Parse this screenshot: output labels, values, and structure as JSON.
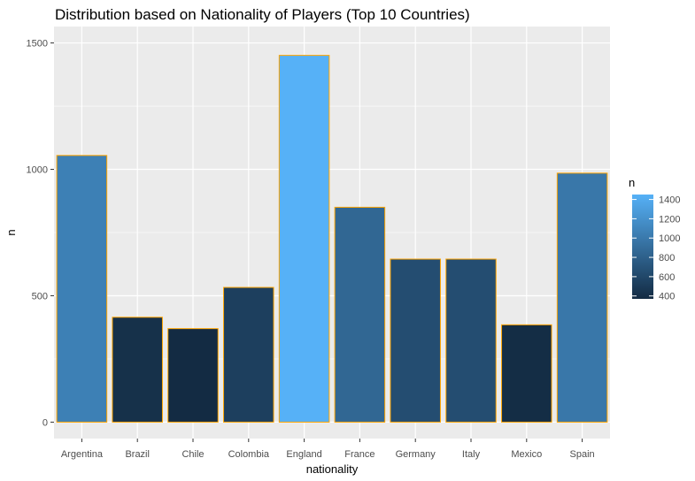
{
  "chart_data": {
    "type": "bar",
    "title": "Distribution based on Nationality of Players (Top 10 Countries)",
    "xlabel": "nationality",
    "ylabel": "n",
    "categories": [
      "Argentina",
      "Brazil",
      "Chile",
      "Colombia",
      "England",
      "France",
      "Germany",
      "Italy",
      "Mexico",
      "Spain"
    ],
    "values": [
      1055,
      415,
      370,
      533,
      1451,
      850,
      645,
      645,
      385,
      985
    ],
    "ylim": [
      -65,
      1565
    ],
    "yticks": [
      0,
      500,
      1000,
      1500
    ],
    "grid": true,
    "bar_border_color": "#FFA500",
    "panel_background": "#EBEBEB",
    "gradient": {
      "low": "#132B43",
      "high": "#56B1F7",
      "range": [
        370,
        1451
      ]
    },
    "legend": {
      "title": "n",
      "position": "right",
      "labels": [
        "1400",
        "1200",
        "1000",
        "800",
        "600",
        "400"
      ],
      "values": [
        1400,
        1200,
        1000,
        800,
        600,
        400
      ]
    }
  }
}
